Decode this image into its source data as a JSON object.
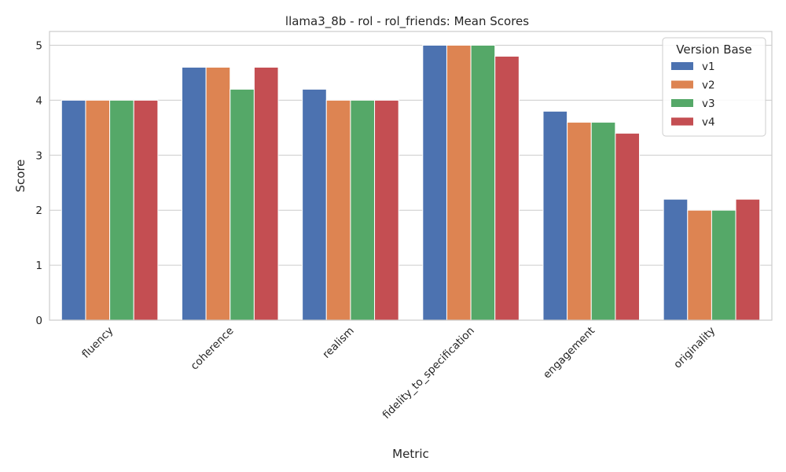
{
  "chart_data": {
    "type": "bar",
    "title": "llama3_8b - rol - rol_friends: Mean Scores",
    "xlabel": "Metric",
    "ylabel": "Score",
    "ylim": [
      0,
      5.25
    ],
    "yticks": [
      0,
      1,
      2,
      3,
      4,
      5
    ],
    "grid": true,
    "legend": {
      "title": "Version Base",
      "placement": "top-right"
    },
    "categories": [
      "fluency",
      "coherence",
      "realism",
      "fidelity_to_specification",
      "engagement",
      "originality"
    ],
    "series": [
      {
        "name": "v1",
        "color": "#4c72b0",
        "values": [
          4.0,
          4.6,
          4.2,
          5.0,
          3.8,
          2.2
        ]
      },
      {
        "name": "v2",
        "color": "#dd8452",
        "values": [
          4.0,
          4.6,
          4.0,
          5.0,
          3.6,
          2.0
        ]
      },
      {
        "name": "v3",
        "color": "#55a868",
        "values": [
          4.0,
          4.2,
          4.0,
          5.0,
          3.6,
          2.0
        ]
      },
      {
        "name": "v4",
        "color": "#c44e52",
        "values": [
          4.0,
          4.6,
          4.0,
          4.8,
          3.4,
          2.2
        ]
      }
    ]
  }
}
